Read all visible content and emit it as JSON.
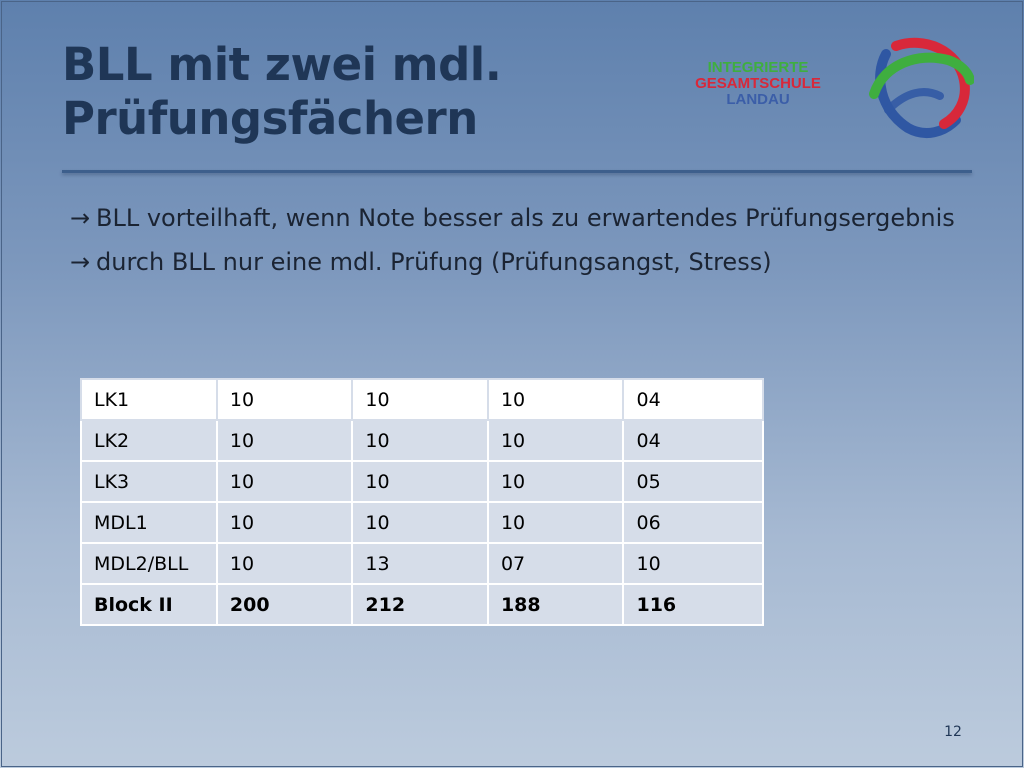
{
  "slide": {
    "title_line1": "BLL mit zwei mdl.",
    "title_line2": "Prüfungsfächern",
    "page_number": "12"
  },
  "logo": {
    "line1": "INTEGRIERTE",
    "line2": "GESAMTSCHULE",
    "line3": "LANDAU",
    "colors": {
      "green": "#3fae3f",
      "red": "#d8283a",
      "blue": "#3b5ea8"
    }
  },
  "bullets": [
    {
      "arrow": "→",
      "text": "BLL vorteilhaft, wenn Note besser als zu erwartendes Prüfungsergebnis"
    },
    {
      "arrow": "→",
      "text": "durch BLL nur eine mdl. Prüfung (Prüfungsangst, Stress)"
    }
  ],
  "table": {
    "rows": [
      [
        "LK1",
        "10",
        "10",
        "10",
        "04"
      ],
      [
        "LK2",
        "10",
        "10",
        "10",
        "04"
      ],
      [
        "LK3",
        "10",
        "10",
        "10",
        "05"
      ],
      [
        "MDL1",
        "10",
        "10",
        "10",
        "06"
      ],
      [
        "MDL2/BLL",
        "10",
        "13",
        "07",
        "10"
      ],
      [
        "Block II",
        "200",
        "212",
        "188",
        "116"
      ]
    ]
  }
}
